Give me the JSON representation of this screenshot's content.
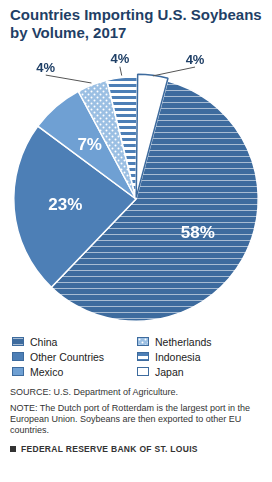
{
  "chart_data": {
    "type": "pie",
    "title": "Countries Importing U.S. Soybeans by Volume, 2017",
    "categories": [
      "China",
      "Other Countries",
      "Mexico",
      "Netherlands",
      "Indonesia",
      "Japan"
    ],
    "values": [
      58,
      23,
      7,
      4,
      4,
      4
    ],
    "value_labels": [
      "58%",
      "23%",
      "7%",
      "4%",
      "4%",
      "4%"
    ],
    "colors": [
      "#3d6b9e",
      "#4d7fb6",
      "#6fa0d3",
      "#9bbfe3",
      "#4d7fb6",
      "#ffffff"
    ],
    "data_labels": true,
    "legend": "bottom",
    "source": "SOURCE: U.S. Department of Agriculture.",
    "note": "NOTE: The Dutch port of Rotterdam is the largest port in the European Union. Soybeans are then exported to other EU countries.",
    "footer": "FEDERAL RESERVE BANK OF ST. LOUIS"
  }
}
